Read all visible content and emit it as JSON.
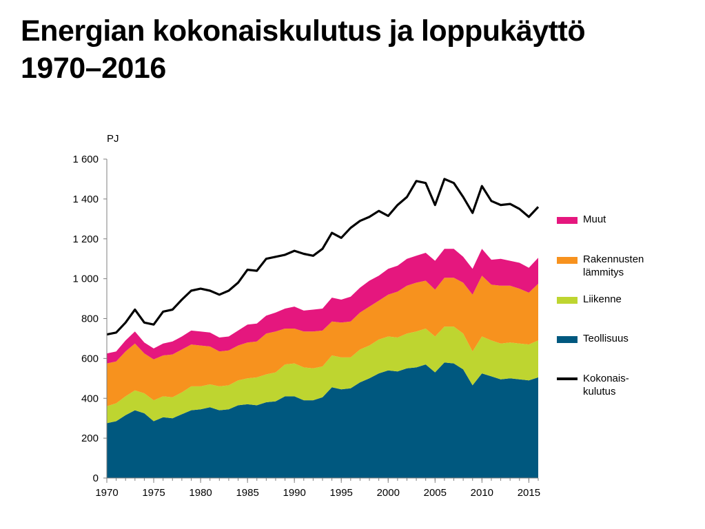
{
  "title": {
    "line1": "Energian kokonaiskulutus ja loppukäyttö",
    "line2": "1970–2016"
  },
  "chart_data": {
    "type": "area",
    "unit_label": "PJ",
    "x": [
      1970,
      1971,
      1972,
      1973,
      1974,
      1975,
      1976,
      1977,
      1978,
      1979,
      1980,
      1981,
      1982,
      1983,
      1984,
      1985,
      1986,
      1987,
      1988,
      1989,
      1990,
      1991,
      1992,
      1993,
      1994,
      1995,
      1996,
      1997,
      1998,
      1999,
      2000,
      2001,
      2002,
      2003,
      2004,
      2005,
      2006,
      2007,
      2008,
      2009,
      2010,
      2011,
      2012,
      2013,
      2014,
      2015,
      2016
    ],
    "xlim": [
      1970,
      2016
    ],
    "ylim": [
      0,
      1600
    ],
    "y_ticks": [
      0,
      200,
      400,
      600,
      800,
      1000,
      1200,
      1400,
      1600
    ],
    "y_tick_labels": [
      "0",
      "200",
      "400",
      "600",
      "800",
      "1 000",
      "1 200",
      "1 400",
      "1 600"
    ],
    "x_ticks": [
      1970,
      1975,
      1980,
      1985,
      1990,
      1995,
      2000,
      2005,
      2010,
      2015
    ],
    "x_tick_labels": [
      "1970",
      "1975",
      "1980",
      "1985",
      "1990",
      "1995",
      "2000",
      "2005",
      "2010",
      "2015"
    ],
    "stacked_series": [
      {
        "name": "Teollisuus",
        "color": "#00587f",
        "values": [
          275,
          285,
          315,
          340,
          325,
          285,
          305,
          300,
          320,
          340,
          345,
          355,
          340,
          345,
          365,
          370,
          365,
          380,
          385,
          410,
          410,
          390,
          390,
          405,
          455,
          445,
          450,
          480,
          500,
          525,
          540,
          535,
          550,
          555,
          570,
          530,
          580,
          575,
          545,
          465,
          525,
          510,
          495,
          500,
          495,
          490,
          505
        ]
      },
      {
        "name": "Liikenne",
        "color": "#bed530",
        "values": [
          85,
          90,
          95,
          100,
          100,
          105,
          105,
          105,
          110,
          120,
          115,
          115,
          120,
          120,
          125,
          130,
          140,
          140,
          145,
          160,
          165,
          165,
          160,
          155,
          160,
          160,
          155,
          165,
          165,
          170,
          170,
          170,
          175,
          180,
          180,
          180,
          180,
          185,
          180,
          170,
          185,
          180,
          180,
          180,
          180,
          180,
          185
        ]
      },
      {
        "name": "Rakennusten\nlämmitys",
        "color": "#f7921e",
        "values": [
          215,
          210,
          225,
          235,
          200,
          205,
          205,
          215,
          215,
          210,
          205,
          190,
          175,
          175,
          175,
          180,
          180,
          205,
          205,
          180,
          175,
          180,
          185,
          180,
          170,
          175,
          180,
          185,
          195,
          195,
          210,
          230,
          240,
          245,
          240,
          235,
          245,
          245,
          255,
          285,
          305,
          280,
          290,
          285,
          275,
          260,
          285
        ]
      },
      {
        "name": "Muut",
        "color": "#e5177e",
        "values": [
          50,
          50,
          55,
          60,
          55,
          55,
          60,
          65,
          65,
          70,
          70,
          70,
          70,
          70,
          75,
          90,
          90,
          90,
          95,
          100,
          110,
          105,
          110,
          110,
          120,
          115,
          125,
          125,
          130,
          125,
          130,
          130,
          135,
          135,
          140,
          145,
          145,
          145,
          130,
          130,
          135,
          125,
          135,
          125,
          130,
          125,
          130
        ]
      }
    ],
    "line_series": {
      "name": "Kokonais-\nkulutus",
      "color": "#000000",
      "values": [
        720,
        730,
        780,
        845,
        780,
        770,
        835,
        845,
        895,
        940,
        950,
        940,
        920,
        940,
        980,
        1045,
        1040,
        1100,
        1110,
        1120,
        1140,
        1125,
        1115,
        1150,
        1230,
        1205,
        1255,
        1290,
        1310,
        1340,
        1315,
        1370,
        1410,
        1490,
        1480,
        1370,
        1500,
        1480,
        1410,
        1330,
        1465,
        1390,
        1370,
        1375,
        1350,
        1310,
        1360
      ]
    },
    "legend_placement": "right",
    "grid": false
  },
  "legend": [
    {
      "label": "Muut",
      "color": "#e5177e",
      "kind": "area"
    },
    {
      "label": "Rakennusten\nlämmitys",
      "color": "#f7921e",
      "kind": "area"
    },
    {
      "label": "Liikenne",
      "color": "#bed530",
      "kind": "area"
    },
    {
      "label": "Teollisuus",
      "color": "#00587f",
      "kind": "area"
    },
    {
      "label": "Kokonais-\nkulutus",
      "color": "#000000",
      "kind": "line"
    }
  ]
}
